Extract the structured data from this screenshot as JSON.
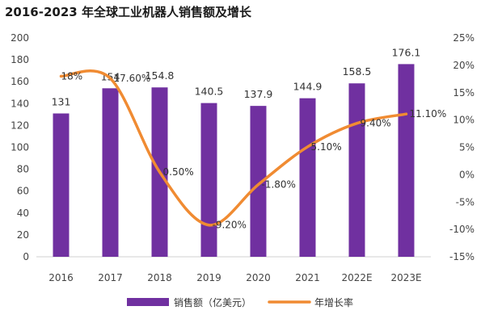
{
  "title": "2016-2023 年全球工业机器人销售额及增长",
  "chart_data": {
    "type": "bar+line",
    "categories": [
      "2016",
      "2017",
      "2018",
      "2019",
      "2020",
      "2021",
      "2022E",
      "2023E"
    ],
    "series": [
      {
        "name": "销售额（亿美元）",
        "type": "bar",
        "axis": "left",
        "values": [
          131,
          154,
          154.8,
          140.5,
          137.9,
          144.9,
          158.5,
          176.1
        ],
        "labels": [
          "131",
          "154",
          "154.8",
          "140.5",
          "137.9",
          "144.9",
          "158.5",
          "176.1"
        ],
        "color": "#7030a0"
      },
      {
        "name": "年增长率",
        "type": "line",
        "axis": "right",
        "values": [
          18,
          17.6,
          0.5,
          -9.2,
          -1.8,
          5.1,
          9.4,
          11.1
        ],
        "labels": [
          "18%",
          "17.60%",
          "0.50%",
          "-9.20%",
          "-1.80%",
          "5.10%",
          "9.40%",
          "11.10%"
        ],
        "color": "#f08b32"
      }
    ],
    "y_left": {
      "min": 0,
      "max": 200,
      "step": 20,
      "ticks": [
        "0",
        "20",
        "40",
        "60",
        "80",
        "100",
        "120",
        "140",
        "160",
        "180",
        "200"
      ]
    },
    "y_right": {
      "min": -15,
      "max": 25,
      "step": 5,
      "ticks": [
        "-15%",
        "-10%",
        "-5%",
        "0%",
        "5%",
        "10%",
        "15%",
        "20%",
        "25%"
      ]
    },
    "legend_position": "bottom",
    "grid": false
  }
}
